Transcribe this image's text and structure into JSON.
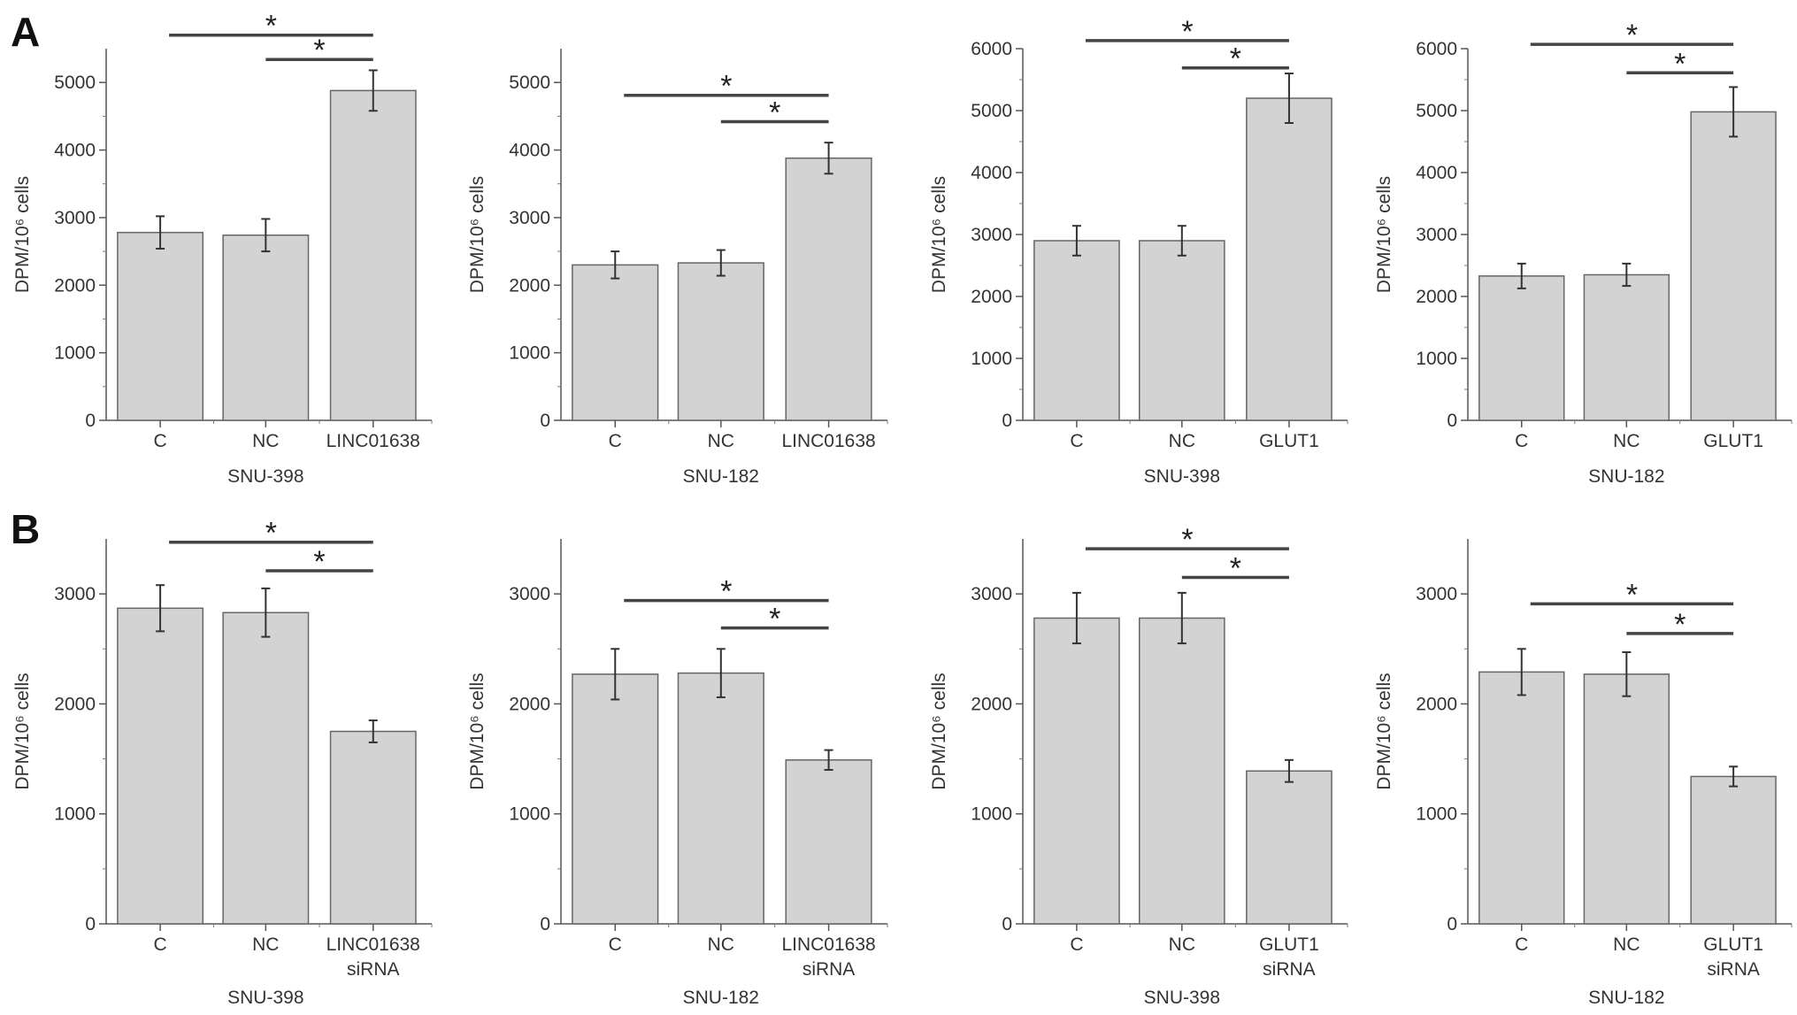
{
  "panel_letters": [
    "A",
    "B"
  ],
  "chart_data": [
    {
      "type": "bar",
      "panel": "A",
      "categories": [
        "C",
        "NC",
        "LINC01638"
      ],
      "values": [
        2780,
        2740,
        4880
      ],
      "errors": [
        240,
        240,
        300
      ],
      "xlabel": "SNU-398",
      "ylabel": "DPM/10⁶ cells",
      "ylim": [
        0,
        5500
      ],
      "yticks": [
        0,
        1000,
        2000,
        3000,
        4000,
        5000
      ],
      "significance": [
        {
          "from": "C",
          "to": "LINC01638",
          "level": 5700,
          "label": "*"
        },
        {
          "from": "NC",
          "to": "LINC01638",
          "level": 5340,
          "label": "*"
        }
      ]
    },
    {
      "type": "bar",
      "panel": "A",
      "categories": [
        "C",
        "NC",
        "LINC01638"
      ],
      "values": [
        2300,
        2330,
        3880
      ],
      "errors": [
        200,
        190,
        230
      ],
      "xlabel": "SNU-182",
      "ylabel": "DPM/10⁶ cells",
      "ylim": [
        0,
        5500
      ],
      "yticks": [
        0,
        1000,
        2000,
        3000,
        4000,
        5000
      ],
      "significance": [
        {
          "from": "C",
          "to": "LINC01638",
          "level": 4810,
          "label": "*"
        },
        {
          "from": "NC",
          "to": "LINC01638",
          "level": 4420,
          "label": "*"
        }
      ]
    },
    {
      "type": "bar",
      "panel": "A",
      "categories": [
        "C",
        "NC",
        "GLUT1"
      ],
      "values": [
        2900,
        2900,
        5200
      ],
      "errors": [
        240,
        240,
        400
      ],
      "xlabel": "SNU-398",
      "ylabel": "DPM/10⁶ cells",
      "ylim": [
        0,
        6000
      ],
      "yticks": [
        0,
        1000,
        2000,
        3000,
        4000,
        5000,
        6000
      ],
      "significance": [
        {
          "from": "C",
          "to": "GLUT1",
          "level": 6130,
          "label": "*"
        },
        {
          "from": "NC",
          "to": "GLUT1",
          "level": 5690,
          "label": "*"
        }
      ]
    },
    {
      "type": "bar",
      "panel": "A",
      "categories": [
        "C",
        "NC",
        "GLUT1"
      ],
      "values": [
        2330,
        2350,
        4980
      ],
      "errors": [
        200,
        180,
        400
      ],
      "xlabel": "SNU-182",
      "ylabel": "DPM/10⁶ cells",
      "ylim": [
        0,
        6000
      ],
      "yticks": [
        0,
        1000,
        2000,
        3000,
        4000,
        5000,
        6000
      ],
      "significance": [
        {
          "from": "C",
          "to": "GLUT1",
          "level": 6070,
          "label": "*"
        },
        {
          "from": "NC",
          "to": "GLUT1",
          "level": 5610,
          "label": "*"
        }
      ]
    },
    {
      "type": "bar",
      "panel": "B",
      "categories": [
        "C",
        "NC",
        "LINC01638\nsiRNA"
      ],
      "values": [
        2870,
        2830,
        1750
      ],
      "errors": [
        210,
        220,
        100
      ],
      "xlabel": "SNU-398",
      "ylabel": "DPM/10⁶ cells",
      "ylim": [
        0,
        3500
      ],
      "yticks": [
        0,
        1000,
        2000,
        3000
      ],
      "significance": [
        {
          "from": "C",
          "to": "LINC01638 siRNA",
          "level": 3470,
          "label": "*"
        },
        {
          "from": "NC",
          "to": "LINC01638 siRNA",
          "level": 3210,
          "label": "*"
        }
      ]
    },
    {
      "type": "bar",
      "panel": "B",
      "categories": [
        "C",
        "NC",
        "LINC01638\nsiRNA"
      ],
      "values": [
        2270,
        2280,
        1490
      ],
      "errors": [
        230,
        220,
        90
      ],
      "xlabel": "SNU-182",
      "ylabel": "DPM/10⁶ cells",
      "ylim": [
        0,
        3500
      ],
      "yticks": [
        0,
        1000,
        2000,
        3000
      ],
      "significance": [
        {
          "from": "C",
          "to": "LINC01638 siRNA",
          "level": 2940,
          "label": "*"
        },
        {
          "from": "NC",
          "to": "LINC01638 siRNA",
          "level": 2690,
          "label": "*"
        }
      ]
    },
    {
      "type": "bar",
      "panel": "B",
      "categories": [
        "C",
        "NC",
        "GLUT1\nsiRNA"
      ],
      "values": [
        2780,
        2780,
        1390
      ],
      "errors": [
        230,
        230,
        100
      ],
      "xlabel": "SNU-398",
      "ylabel": "DPM/10⁶ cells",
      "ylim": [
        0,
        3500
      ],
      "yticks": [
        0,
        1000,
        2000,
        3000
      ],
      "significance": [
        {
          "from": "C",
          "to": "GLUT1 siRNA",
          "level": 3410,
          "label": "*"
        },
        {
          "from": "NC",
          "to": "GLUT1 siRNA",
          "level": 3150,
          "label": "*"
        }
      ]
    },
    {
      "type": "bar",
      "panel": "B",
      "categories": [
        "C",
        "NC",
        "GLUT1\nsiRNA"
      ],
      "values": [
        2290,
        2270,
        1340
      ],
      "errors": [
        210,
        200,
        90
      ],
      "xlabel": "SNU-182",
      "ylabel": "DPM/10⁶ cells",
      "ylim": [
        0,
        3500
      ],
      "yticks": [
        0,
        1000,
        2000,
        3000
      ],
      "significance": [
        {
          "from": "C",
          "to": "GLUT1 siRNA",
          "level": 2910,
          "label": "*"
        },
        {
          "from": "NC",
          "to": "GLUT1 siRNA",
          "level": 2640,
          "label": "*"
        }
      ]
    }
  ]
}
